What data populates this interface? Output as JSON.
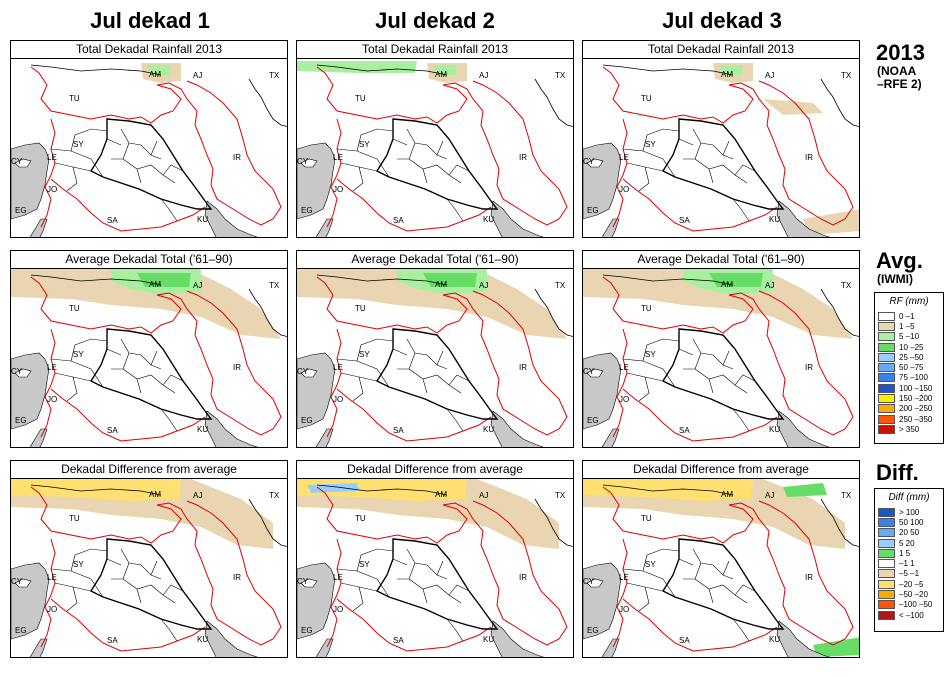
{
  "column_titles": [
    "Jul dekad 1",
    "Jul dekad 2",
    "Jul dekad 3"
  ],
  "row_titles": [
    "Total Dekadal Rainfall 2013",
    "Average Dekadal Total ('61–90)",
    "Dekadal Difference from average"
  ],
  "side": {
    "rfe_head": "2013",
    "rfe_sub1": "(NOAA",
    "rfe_sub2": "–RFE 2)",
    "avg_head": "Avg.",
    "avg_sub": "(IWMI)",
    "diff_head": "Diff."
  },
  "rf_legend": {
    "title": "RF (mm)",
    "items": [
      {
        "label": "0 –1",
        "color": "#ffffff"
      },
      {
        "label": "1 –5",
        "color": "#e9d5b1"
      },
      {
        "label": "5 –10",
        "color": "#a8f0a0"
      },
      {
        "label": "10 –25",
        "color": "#66dd66"
      },
      {
        "label": "25 –50",
        "color": "#99ccff"
      },
      {
        "label": "50 –75",
        "color": "#66aaf5"
      },
      {
        "label": "75 –100",
        "color": "#3a80ee"
      },
      {
        "label": "100 –150",
        "color": "#1a56cc"
      },
      {
        "label": "150 –200",
        "color": "#ffee00"
      },
      {
        "label": "200 –250",
        "color": "#ffaa00"
      },
      {
        "label": "250 –350",
        "color": "#ff5500"
      },
      {
        "label": "> 350",
        "color": "#cc1100"
      }
    ]
  },
  "diff_legend": {
    "title": "Diff (mm)",
    "items": [
      {
        "label": "> 100",
        "color": "#1a56cc"
      },
      {
        "label": "50 100",
        "color": "#3a80ee"
      },
      {
        "label": "20 50",
        "color": "#66aaf5"
      },
      {
        "label": "5 20",
        "color": "#99ccff"
      },
      {
        "label": "1 5",
        "color": "#66dd66"
      },
      {
        "label": "–1 1",
        "color": "#ffffff"
      },
      {
        "label": "–5 –1",
        "color": "#e9d5b1"
      },
      {
        "label": "–20 –5",
        "color": "#ffe070"
      },
      {
        "label": "–50 –20",
        "color": "#ffaa00"
      },
      {
        "label": "–100 –50",
        "color": "#ff5500"
      },
      {
        "label": "< –100",
        "color": "#aa1a1a"
      }
    ]
  },
  "map_labels": {
    "am": "AM",
    "aj": "AJ",
    "tx": "TX",
    "tu": "TU",
    "sy": "SY",
    "cy": "CY",
    "le": "LE",
    "jo": "JO",
    "eg": "EG",
    "ir": "IR",
    "sa": "SA",
    "ku": "KU"
  },
  "colors": {
    "border_red": "#e00000",
    "border_black": "#000000",
    "water": "#c8c8c8"
  }
}
